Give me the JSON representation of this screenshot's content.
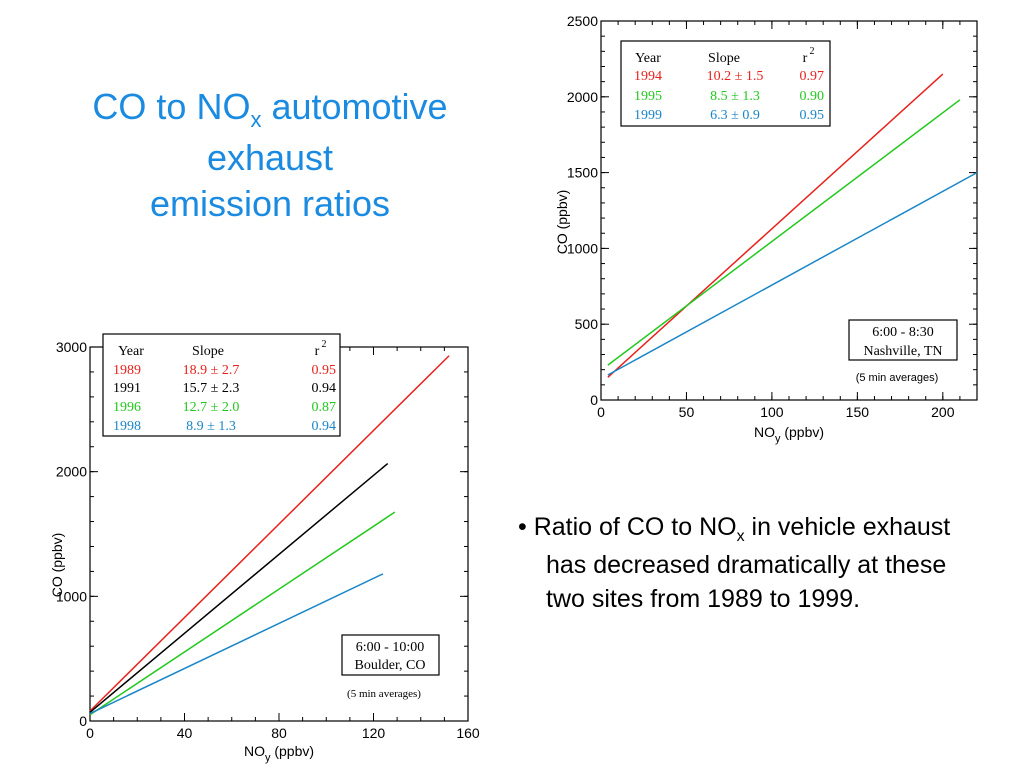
{
  "title": {
    "line1_pre": "CO to NO",
    "line1_sub": "x",
    "line1_post": " automotive",
    "line2": "exhaust",
    "line3": "emission ratios"
  },
  "bullet": {
    "marker": "•",
    "pre": "Ratio of CO to NO",
    "sub": "x",
    "post1": " in vehicle exhaust",
    "line2": "has decreased dramatically at these",
    "line3": "two sites from 1989 to 1999."
  },
  "colors": {
    "title": "#1a8be0",
    "red": "#e8211d",
    "black": "#000000",
    "green": "#22c81e",
    "blue": "#1a86c8"
  },
  "chart_data": [
    {
      "type": "line",
      "site": "Nashville",
      "xlabel": "NO",
      "xlabel_sub": "y",
      "xlabel_unit": "(ppbv)",
      "ylabel": "CO (ppbv)",
      "xlim": [
        0,
        220
      ],
      "ylim": [
        0,
        2500
      ],
      "xticks": [
        0,
        50,
        100,
        150,
        200
      ],
      "yticks": [
        0,
        500,
        1000,
        1500,
        2000,
        2500
      ],
      "table_headers": {
        "year": "Year",
        "slope": "Slope",
        "r2": "r",
        "r2_sup": "2"
      },
      "series": [
        {
          "name": "1994",
          "slope": "10.2 ± 1.5",
          "r2": "0.97",
          "color": "#e8211d",
          "x": [
            4,
            200
          ],
          "y": [
            150,
            2150
          ]
        },
        {
          "name": "1995",
          "slope": "8.5 ± 1.3",
          "r2": "0.90",
          "color": "#22c81e",
          "x": [
            4,
            210
          ],
          "y": [
            230,
            1980
          ]
        },
        {
          "name": "1999",
          "slope": "6.3 ± 0.9",
          "r2": "0.95",
          "color": "#1a86c8",
          "x": [
            4,
            220
          ],
          "y": [
            165,
            1500
          ]
        }
      ],
      "annotation": {
        "line1": "6:00 - 8:30",
        "line2": "Nashville, TN",
        "note": "(5 min averages)"
      }
    },
    {
      "type": "line",
      "site": "Boulder",
      "xlabel": "NO",
      "xlabel_sub": "y",
      "xlabel_unit": "(ppbv)",
      "ylabel": "CO (ppbv)",
      "xlim": [
        0,
        160
      ],
      "ylim": [
        0,
        3000
      ],
      "xticks": [
        0,
        40,
        80,
        120,
        160
      ],
      "yticks": [
        0,
        1000,
        2000,
        3000
      ],
      "table_headers": {
        "year": "Year",
        "slope": "Slope",
        "r2": "r",
        "r2_sup": "2"
      },
      "series": [
        {
          "name": "1989",
          "slope": "18.9 ± 2.7",
          "r2": "0.95",
          "color": "#e8211d",
          "x": [
            0,
            152
          ],
          "y": [
            80,
            2930
          ]
        },
        {
          "name": "1991",
          "slope": "15.7 ± 2.3",
          "r2": "0.94",
          "color": "#000000",
          "x": [
            0,
            126
          ],
          "y": [
            70,
            2065
          ]
        },
        {
          "name": "1996",
          "slope": "12.7 ± 2.0",
          "r2": "0.87",
          "color": "#22c81e",
          "x": [
            0,
            129
          ],
          "y": [
            50,
            1675
          ]
        },
        {
          "name": "1998",
          "slope": "8.9 ± 1.3",
          "r2": "0.94",
          "color": "#1a86c8",
          "x": [
            0,
            124
          ],
          "y": [
            60,
            1180
          ]
        }
      ],
      "annotation": {
        "line1": "6:00 - 10:00",
        "line2": "Boulder, CO",
        "note": "(5 min averages)"
      }
    }
  ]
}
